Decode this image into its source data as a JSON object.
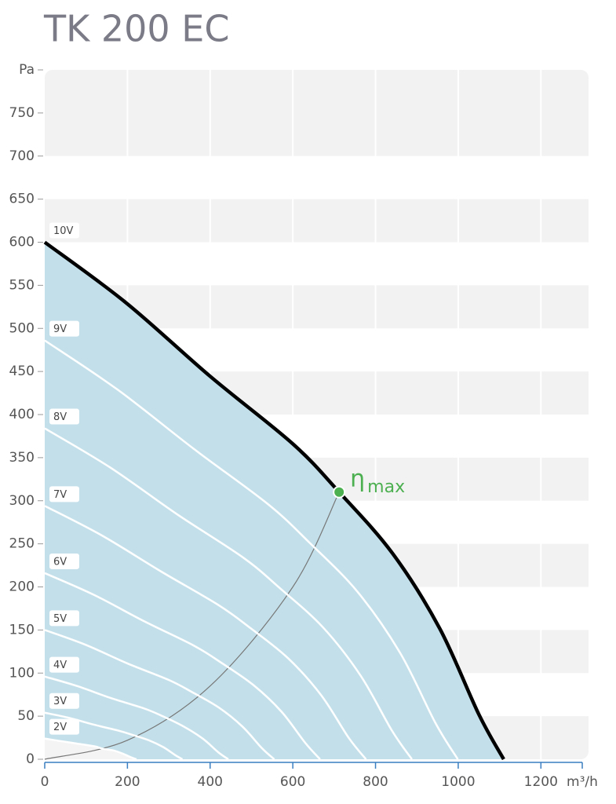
{
  "chart_data": {
    "type": "line",
    "title": "TK 200 EC",
    "x_label": "m³/h",
    "y_label": "Pa",
    "xlim": [
      0,
      1300
    ],
    "ylim": [
      0,
      800
    ],
    "xticks": [
      0,
      200,
      400,
      600,
      800,
      1000,
      1200
    ],
    "yticks": [
      0,
      50,
      100,
      150,
      200,
      250,
      300,
      350,
      400,
      450,
      500,
      550,
      600,
      650,
      700,
      750
    ],
    "grid": true,
    "area_color": "#c3e0ea",
    "series": [
      {
        "name": "10V",
        "color": "#000000",
        "x": [
          0,
          196,
          401,
          600,
          712,
          841,
          955,
          1050,
          1110
        ],
        "values": [
          600,
          530,
          444,
          366,
          310,
          239,
          152,
          52,
          0
        ]
      },
      {
        "name": "9V",
        "color": "#ffffff",
        "x": [
          0,
          176,
          361,
          540,
          641,
          757,
          860,
          945,
          999
        ],
        "values": [
          486,
          429,
          360,
          296,
          251,
          194,
          123,
          42,
          0
        ]
      },
      {
        "name": "8V",
        "color": "#ffffff",
        "x": [
          0,
          157,
          321,
          480,
          570,
          673,
          764,
          840,
          888
        ],
        "values": [
          384,
          339,
          284,
          234,
          198,
          153,
          97,
          33,
          0
        ]
      },
      {
        "name": "7V",
        "color": "#ffffff",
        "x": [
          0,
          137,
          281,
          420,
          498,
          589,
          669,
          735,
          777
        ],
        "values": [
          294,
          260,
          218,
          179,
          152,
          117,
          74,
          25,
          0
        ]
      },
      {
        "name": "6V",
        "color": "#ffffff",
        "x": [
          0,
          118,
          241,
          360,
          427,
          505,
          573,
          630,
          666
        ],
        "values": [
          216,
          191,
          160,
          132,
          112,
          86,
          55,
          19,
          0
        ]
      },
      {
        "name": "5V",
        "color": "#ffffff",
        "x": [
          0,
          98,
          201,
          300,
          356,
          421,
          478,
          525,
          555
        ],
        "values": [
          150,
          133,
          111,
          92,
          78,
          60,
          38,
          13,
          0
        ]
      },
      {
        "name": "4V",
        "color": "#ffffff",
        "x": [
          0,
          78,
          160,
          240,
          285,
          336,
          382,
          420,
          444
        ],
        "values": [
          96,
          85,
          71,
          59,
          50,
          38,
          24,
          8,
          0
        ]
      },
      {
        "name": "3V",
        "color": "#ffffff",
        "x": [
          0,
          59,
          120,
          180,
          214,
          252,
          287,
          315,
          333
        ],
        "values": [
          54,
          48,
          40,
          33,
          28,
          22,
          14,
          5,
          0
        ]
      },
      {
        "name": "2V",
        "color": "#ffffff",
        "x": [
          0,
          39,
          80,
          120,
          142,
          168,
          191,
          210,
          222
        ],
        "values": [
          24,
          21,
          18,
          15,
          12,
          10,
          6,
          2,
          0
        ]
      }
    ],
    "efficiency_curve": {
      "color": "#777777",
      "x": [
        0,
        200,
        400,
        600,
        712
      ],
      "values": [
        0,
        22,
        85,
        200,
        310
      ]
    },
    "annotation": {
      "text": "η",
      "subscript": "max",
      "x": 712,
      "y": 310,
      "color": "#4caf50"
    }
  }
}
